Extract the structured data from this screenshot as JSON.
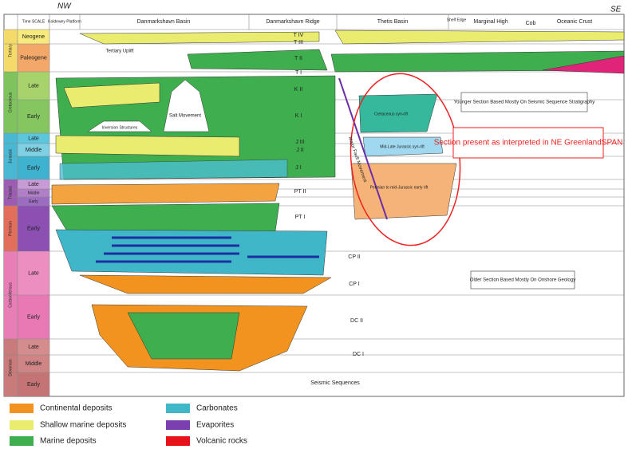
{
  "header": {
    "left": "NW",
    "right": "SE",
    "time_scale": "Time SCALE",
    "columns": [
      "Koldewey Platform",
      "Danmarkshavn Basin",
      "Danmarkshavn Ridge",
      "Thetis Basin",
      "Shelf Edge",
      "Marginal High",
      "Cob",
      "Oceanic Crust"
    ]
  },
  "periods": [
    "Tertiary",
    "Cretaceous",
    "Jurassic",
    "Triassic",
    "Permian",
    "Carboniferous",
    "Devonian"
  ],
  "epochs": [
    "Neogene",
    "Paleogene",
    "Late",
    "Early",
    "Late",
    "Middle",
    "Early",
    "Late",
    "Middle",
    "Early",
    "Early",
    "Late",
    "Early",
    "Late",
    "Middle",
    "Early"
  ],
  "sequences": [
    "T IV",
    "T III",
    "T II",
    "T I",
    "K II",
    "K I",
    "J III",
    "J II",
    "J I",
    "PT II",
    "PT I",
    "CP II",
    "CP I",
    "DC II",
    "DC I"
  ],
  "sequences_title": "Seismic Sequences",
  "annotations": {
    "tertiary_uplift": "Tertiary Uplift",
    "salt": "Salt Movement",
    "inversion": "Inversion Structures",
    "fault": "Major Fault Movement",
    "cret_rift": "Cretaceous syn-rift",
    "jur_rift": "Mid-Late Jurassic syn-rift",
    "early_rift": "Permian to mid-Jurassic early rift",
    "younger": "Younger Section Based Mostly On Seismic Sequence Stratigraphy",
    "older": "Older Section Based Mostly On Onshore Geology",
    "interpreted": "Section present as interpreted in NE GreenlandSPAN"
  },
  "legend": [
    "Continental deposits",
    "Shallow marine deposits",
    "Marine deposits",
    "Carbonates",
    "Evaporites",
    "Volcanic rocks"
  ]
}
